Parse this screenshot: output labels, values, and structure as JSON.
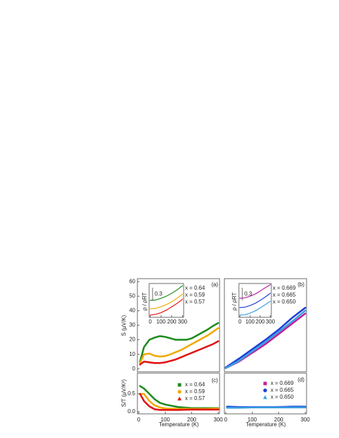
{
  "chart_data": [
    {
      "type": "line",
      "panel_label": "(a)",
      "y_label": "S (μV/K)",
      "xlim": [
        -5,
        305
      ],
      "ylim": [
        -2,
        62
      ],
      "yticks": [
        0,
        10,
        20,
        30,
        40,
        50,
        60
      ],
      "x": [
        5,
        20,
        40,
        60,
        80,
        100,
        120,
        140,
        160,
        180,
        200,
        220,
        240,
        260,
        280,
        300
      ],
      "series": [
        {
          "name": "x = 0.64",
          "color": "#1e8c1e",
          "values": [
            5,
            15,
            20,
            21.5,
            22.5,
            22,
            21,
            20,
            20,
            20,
            21,
            23,
            25,
            27,
            29.5,
            31.5
          ]
        },
        {
          "name": "x = 0.59",
          "color": "#f2a900",
          "values": [
            4,
            10,
            10.5,
            9,
            8.5,
            8.8,
            10,
            11.5,
            13,
            15,
            17,
            19,
            21,
            23,
            25.5,
            28
          ]
        },
        {
          "name": "x = 0.57",
          "color": "#e01414",
          "values": [
            3,
            5,
            4.5,
            4,
            4,
            4.5,
            5.5,
            6.5,
            8,
            9.5,
            11,
            12.5,
            14,
            15.5,
            17,
            19
          ]
        }
      ]
    },
    {
      "type": "line",
      "panel_label": "(b)",
      "xlim": [
        -5,
        305
      ],
      "ylim": [
        -2,
        62
      ],
      "x": [
        0,
        50,
        100,
        150,
        200,
        250,
        300
      ],
      "series": [
        {
          "name": "x = 0.669",
          "color": "#c0209a",
          "values": [
            0.5,
            5,
            11,
            17,
            24,
            31,
            38
          ]
        },
        {
          "name": "x = 0.665",
          "color": "#1f3fd8",
          "values": [
            1,
            7,
            13.5,
            20,
            27,
            35,
            42
          ]
        },
        {
          "name": "x = 0.650",
          "color": "#3aa0e0",
          "values": [
            0.5,
            5.5,
            12,
            18.5,
            25.5,
            32.5,
            40
          ]
        }
      ]
    },
    {
      "type": "line",
      "panel_label": "(c)",
      "y_label": "S/T (μV/K²)",
      "x_label": "Temperature (K)",
      "xlim": [
        -5,
        305
      ],
      "ylim": [
        -0.06,
        1.08
      ],
      "xticks": [
        0,
        100,
        200,
        300
      ],
      "yticks": [
        {
          "value": 0,
          "label": "0.0"
        },
        0.5
      ],
      "x": [
        5,
        20,
        40,
        60,
        80,
        100,
        150,
        200,
        250,
        300
      ],
      "series": [
        {
          "name": "x = 0.64",
          "color": "#1e8c1e",
          "marker": "square",
          "values": [
            0.72,
            0.65,
            0.5,
            0.35,
            0.25,
            0.2,
            0.13,
            0.1,
            0.1,
            0.1
          ]
        },
        {
          "name": "x = 0.59",
          "color": "#f2a900",
          "marker": "circle",
          "values": [
            0.5,
            0.5,
            0.3,
            0.18,
            0.12,
            0.09,
            0.08,
            0.08,
            0.08,
            0.09
          ]
        },
        {
          "name": "x = 0.57",
          "color": "#e01414",
          "marker": "triangle",
          "values": [
            0.5,
            0.3,
            0.15,
            0.07,
            0.05,
            0.05,
            0.05,
            0.06,
            0.06,
            0.06
          ]
        }
      ]
    },
    {
      "type": "line",
      "panel_label": "(d)",
      "x_label": "Temperature (K)",
      "xlim": [
        -5,
        305
      ],
      "ylim": [
        -0.06,
        1.08
      ],
      "xticks": [
        0,
        100,
        200,
        300
      ],
      "x": [
        5,
        50,
        100,
        150,
        200,
        250,
        300
      ],
      "series": [
        {
          "name": "x = 0.669",
          "color": "#c0209a",
          "marker": "square",
          "values": [
            0.12,
            0.12,
            0.12,
            0.12,
            0.13,
            0.13,
            0.13
          ]
        },
        {
          "name": "x = 0.665",
          "color": "#1f3fd8",
          "marker": "circle",
          "values": [
            0.14,
            0.13,
            0.13,
            0.13,
            0.13,
            0.14,
            0.14
          ]
        },
        {
          "name": "x = 0.650",
          "color": "#3aa0e0",
          "marker": "triangle",
          "values": [
            0.11,
            0.11,
            0.12,
            0.12,
            0.12,
            0.12,
            0.12
          ]
        }
      ]
    },
    {
      "type": "line",
      "y_label": "ρ / ρRT",
      "scale_bar": 0.3,
      "xlim": [
        -10,
        310
      ],
      "ylim": [
        0.85,
        1.65
      ],
      "xticks": [
        0,
        100,
        200,
        300
      ],
      "x": [
        0,
        50,
        100,
        150,
        200,
        250,
        300
      ],
      "series": [
        {
          "color": "#1e8c1e",
          "values": [
            1.25,
            1.26,
            1.3,
            1.35,
            1.42,
            1.5,
            1.6
          ]
        },
        {
          "color": "#f2a900",
          "values": [
            1.05,
            1.06,
            1.1,
            1.15,
            1.22,
            1.3,
            1.4
          ]
        },
        {
          "color": "#e01414",
          "values": [
            0.9,
            0.92,
            0.96,
            1.02,
            1.1,
            1.18,
            1.28
          ]
        }
      ]
    },
    {
      "type": "line",
      "y_label": "ρ / ρRT",
      "scale_bar": 0.3,
      "xlim": [
        -10,
        310
      ],
      "ylim": [
        0.85,
        1.65
      ],
      "xticks": [
        0,
        100,
        200,
        300
      ],
      "x": [
        0,
        50,
        100,
        150,
        200,
        250,
        300
      ],
      "series": [
        {
          "color": "#c0209a",
          "values": [
            1.3,
            1.31,
            1.35,
            1.4,
            1.47,
            1.55,
            1.62
          ]
        },
        {
          "color": "#1f3fd8",
          "values": [
            1.08,
            1.09,
            1.13,
            1.18,
            1.25,
            1.33,
            1.42
          ]
        },
        {
          "color": "#3aa0e0",
          "values": [
            0.9,
            0.91,
            0.95,
            1.0,
            1.07,
            1.15,
            1.23
          ]
        }
      ]
    }
  ]
}
